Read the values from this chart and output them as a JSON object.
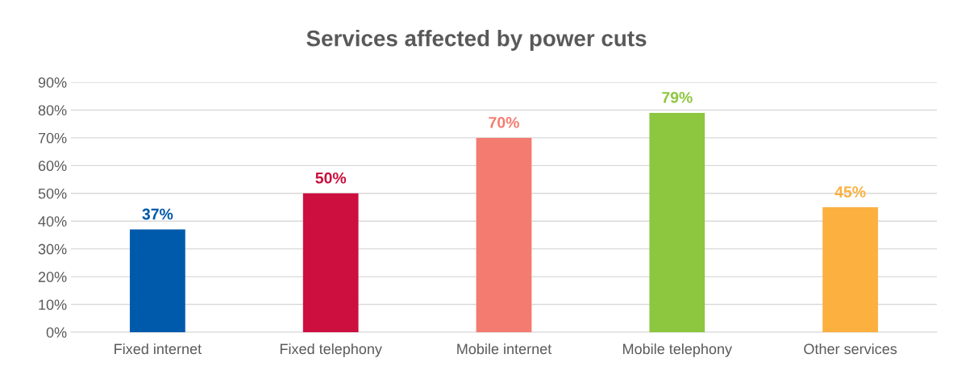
{
  "chart_data": {
    "type": "bar",
    "title": "Services affected by power cuts",
    "categories": [
      "Fixed internet",
      "Fixed telephony",
      "Mobile internet",
      "Mobile telephony",
      "Other services"
    ],
    "values": [
      37,
      50,
      70,
      79,
      45
    ],
    "colors": [
      "#005aab",
      "#cc0f3f",
      "#f47b6f",
      "#8dc63f",
      "#fbb040"
    ],
    "value_labels": [
      "37%",
      "50%",
      "70%",
      "79%",
      "45%"
    ],
    "ylim": [
      0,
      90
    ],
    "yticks": [
      {
        "value": 0,
        "label": "0%"
      },
      {
        "value": 10,
        "label": "10%"
      },
      {
        "value": 20,
        "label": "20%"
      },
      {
        "value": 30,
        "label": "30%"
      },
      {
        "value": 40,
        "label": "40%"
      },
      {
        "value": 50,
        "label": "50%"
      },
      {
        "value": 60,
        "label": "60%"
      },
      {
        "value": 70,
        "label": "70%"
      },
      {
        "value": 80,
        "label": "80%"
      },
      {
        "value": 90,
        "label": "90%"
      }
    ],
    "grid": "y",
    "legend": false
  }
}
